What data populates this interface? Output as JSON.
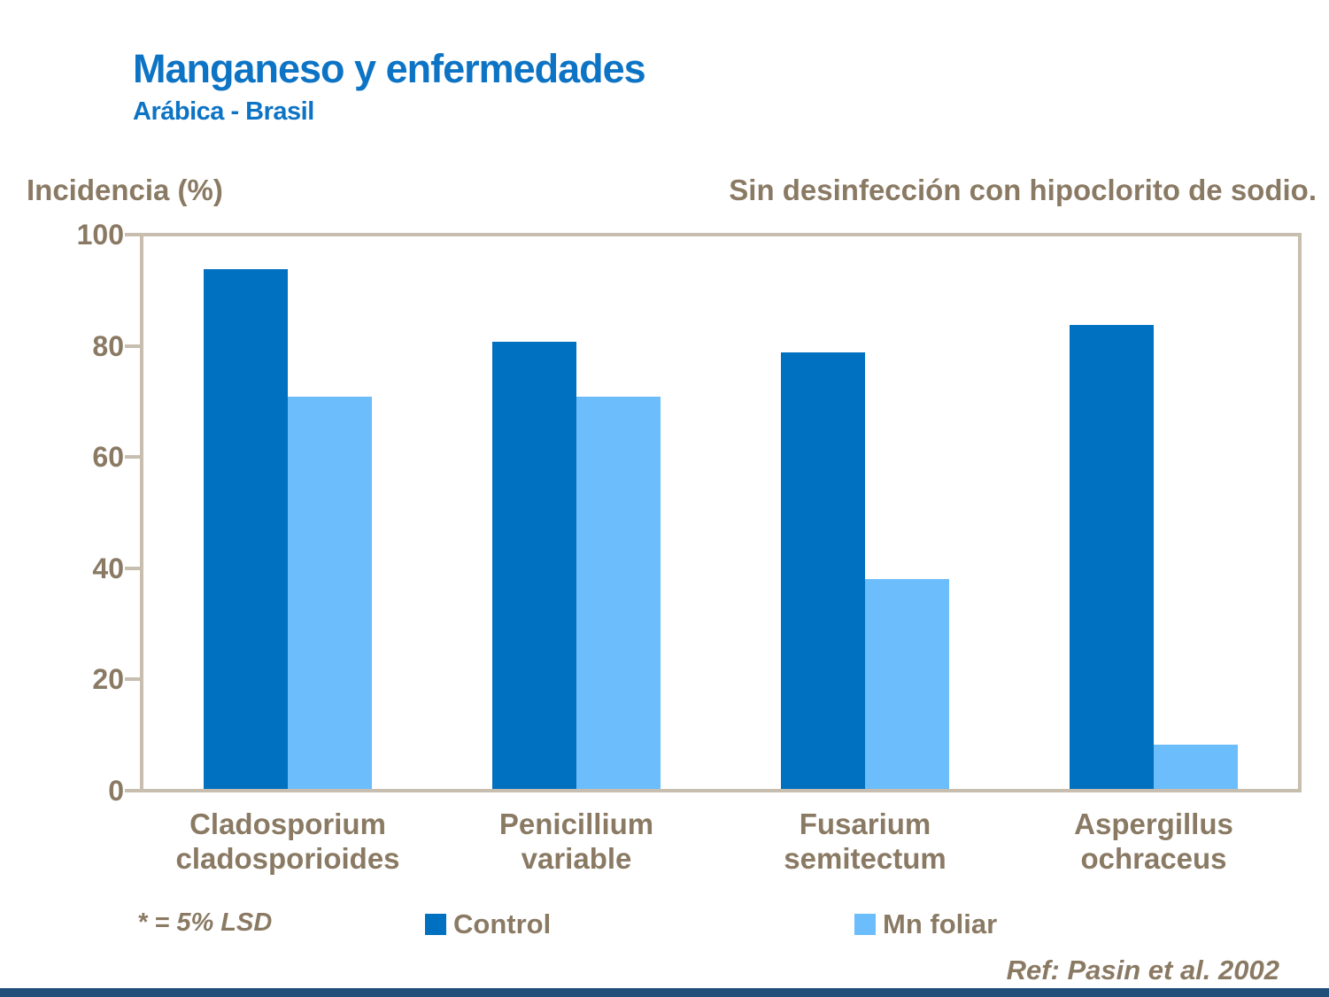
{
  "slide": {
    "title": "Manganeso y enfermedades",
    "subtitle": "Arábica - Brasil",
    "top_note": "Sin desinfección con hipoclorito de sodio.",
    "footnote": "* = 5% LSD",
    "reference": "Ref: Pasin et al. 2002"
  },
  "chart_data": {
    "type": "bar",
    "title": "Manganeso y enfermedades",
    "subtitle": "Arábica - Brasil",
    "ylabel": "Incidencia (%)",
    "xlabel": "",
    "ylim": [
      0,
      100
    ],
    "yticks": [
      0,
      20,
      40,
      60,
      80,
      100
    ],
    "grid": false,
    "legend_position": "bottom",
    "categories": [
      "Cladosporium cladosporioides",
      "Penicillium variable",
      "Fusarium semitectum",
      "Aspergillus ochraceus"
    ],
    "series": [
      {
        "name": "Control",
        "color": "#0070c0",
        "values": [
          94,
          81,
          79,
          84
        ]
      },
      {
        "name": "Mn foliar",
        "color": "#6cbdfb",
        "values": [
          71,
          71,
          38,
          8
        ]
      }
    ],
    "annotation": "Sin desinfección con hipoclorito de sodio.",
    "footnote": "* = 5% LSD",
    "reference": "Ref: Pasin et al. 2002"
  },
  "colors": {
    "title_blue": "#0d74c5",
    "text_brown": "#8a7a64",
    "axis_tan": "#c8beaf",
    "control_bar": "#0070c0",
    "mn_foliar_bar": "#6cbdfb",
    "bottom_strip": "#1f4e79"
  }
}
